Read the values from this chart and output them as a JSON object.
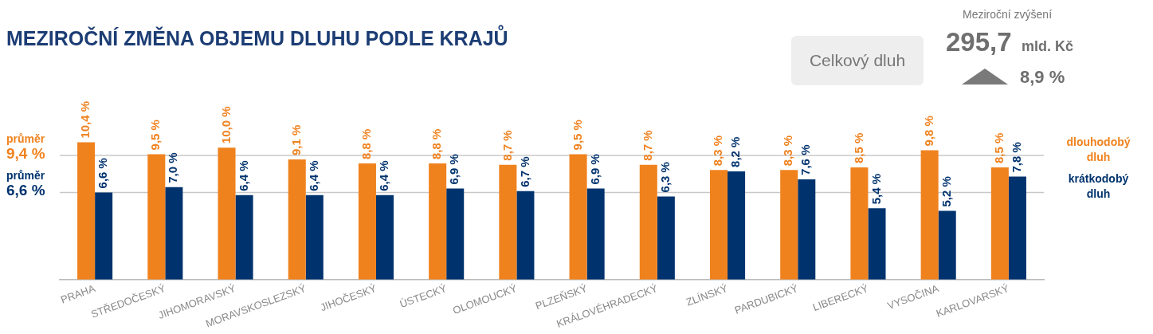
{
  "chart_data": {
    "type": "bar",
    "title": "MEZIROČNÍ ZMĚNA OBJEMU DLUHU PODLE KRAJŮ",
    "categories": [
      "PRAHA",
      "STŘEDOČESKÝ",
      "JIHOMORAVSKÝ",
      "MORAVSKOSLEZSKÝ",
      "JIHOČESKÝ",
      "ÚSTECKÝ",
      "OLOMOUCKÝ",
      "PLZEŇSKÝ",
      "KRÁLOVÉHRADECKÝ",
      "ZLÍNSKÝ",
      "PARDUBICKÝ",
      "LIBERECKÝ",
      "VYSOČINA",
      "KARLOVARSKÝ"
    ],
    "series": [
      {
        "name": "dlouhodobý dluh",
        "color": "#f0821e",
        "values": [
          10.4,
          9.5,
          10.0,
          9.1,
          8.8,
          8.8,
          8.7,
          9.5,
          8.7,
          8.3,
          8.3,
          8.5,
          9.8,
          8.5
        ],
        "value_labels": [
          "10,4 %",
          "9,5 %",
          "10,0 %",
          "9,1 %",
          "8,8 %",
          "8,8 %",
          "8,7 %",
          "9,5 %",
          "8,7 %",
          "8,3 %",
          "8,3 %",
          "8,5 %",
          "9,8 %",
          "8,5 %"
        ]
      },
      {
        "name": "krátkodobý dluh",
        "color": "#00336e",
        "values": [
          6.6,
          7.0,
          6.4,
          6.4,
          6.4,
          6.9,
          6.7,
          6.9,
          6.3,
          8.2,
          7.6,
          5.4,
          5.2,
          7.8
        ],
        "value_labels": [
          "6,6 %",
          "7,0 %",
          "6,4 %",
          "6,4 %",
          "6,4 %",
          "6,9 %",
          "6,7 %",
          "6,9 %",
          "6,3 %",
          "8,2 %",
          "7,6 %",
          "5,4 %",
          "5,2 %",
          "7,8 %"
        ]
      }
    ],
    "ref_lines": [
      {
        "axis": "y",
        "value": 9.4,
        "label": "průměr\n9,4 %",
        "color": "#c8c8c8"
      },
      {
        "axis": "y",
        "value": 6.6,
        "label": "průměr\n6,6 %",
        "color": "#c8c8c8"
      }
    ],
    "legend": "right",
    "annotations": [
      "Meziroční zvýšení",
      "Celkový dluh",
      "295,7 mld. Kč",
      "8,9 %"
    ]
  }
}
